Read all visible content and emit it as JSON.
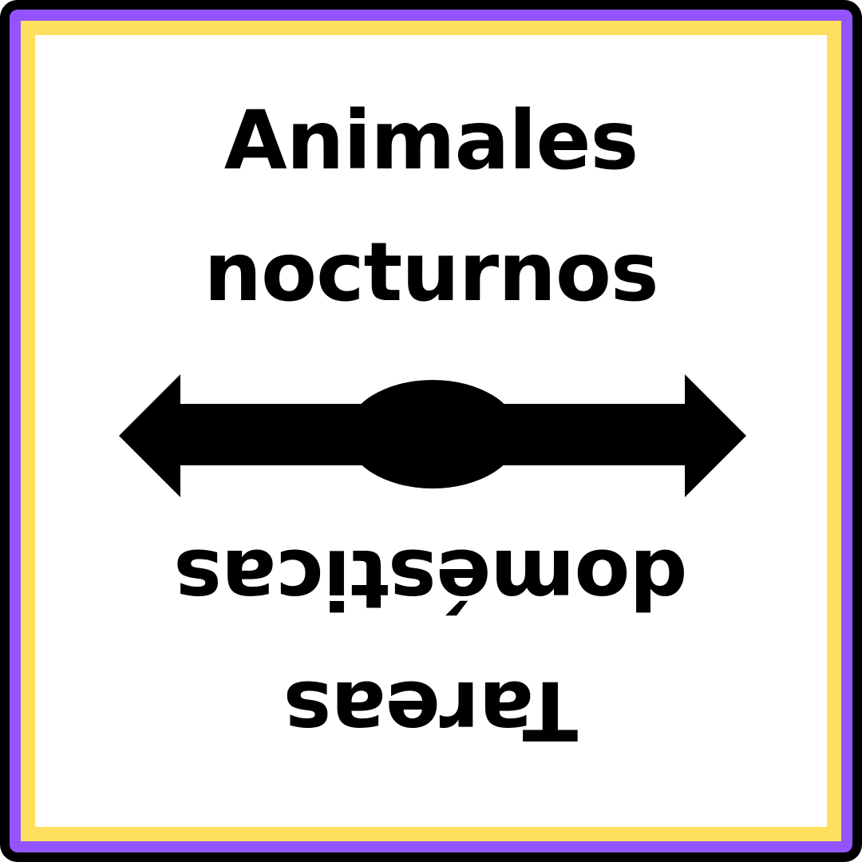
{
  "card": {
    "top_label": {
      "lines": [
        "Animales",
        "nocturnos"
      ]
    },
    "bottom_label": {
      "lines": [
        "Tareas",
        "domésticas"
      ]
    },
    "icons": {
      "divider": "double-headed-arrow-icon"
    },
    "colors": {
      "outer_border": "#000000",
      "middle_border": "#9254FF",
      "inner_border": "#FFDF5E",
      "panel": "#FFFFFF",
      "ink": "#000000"
    }
  }
}
